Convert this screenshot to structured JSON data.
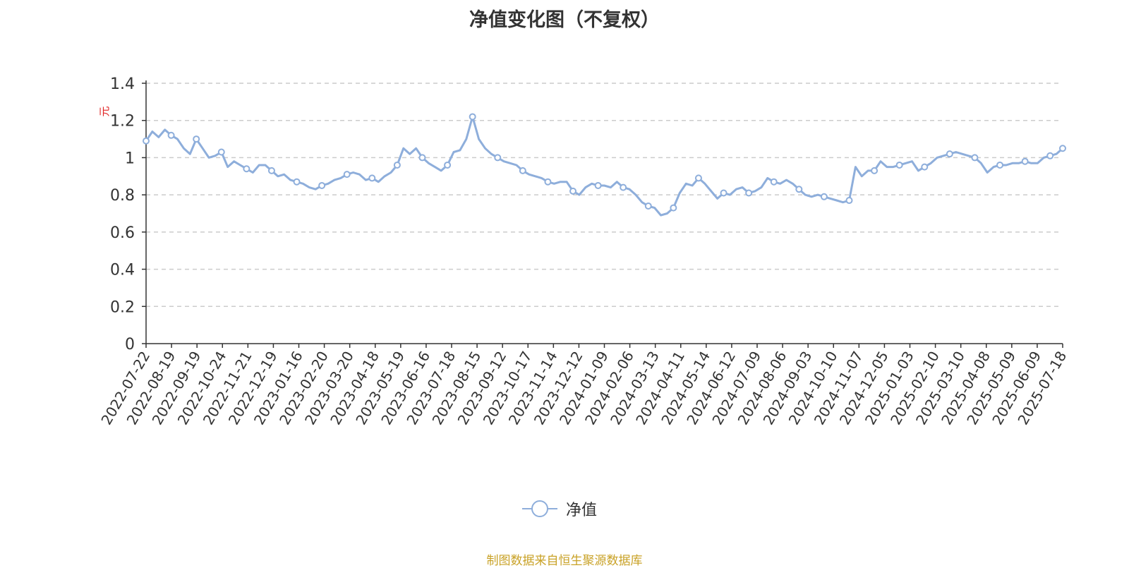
{
  "title": "净值变化图（不复权）",
  "source_note": "制图数据来自恒生聚源数据库",
  "colors": {
    "series": "#8eaedb",
    "axis": "#333333",
    "grid": "#cccccc",
    "unit": "#e02020",
    "source": "#c9a227"
  },
  "chart_data": {
    "type": "line",
    "title": "净值变化图（不复权）",
    "ylabel": "元",
    "xlabel": "",
    "ylim": [
      0,
      1.4
    ],
    "yticks": [
      "0",
      "0.2",
      "0.4",
      "0.6",
      "0.8",
      "1",
      "1.2",
      "1.4"
    ],
    "xticks": [
      "2022-07-22",
      "2022-08-19",
      "2022-09-19",
      "2022-10-24",
      "2022-11-21",
      "2022-12-19",
      "2023-01-16",
      "2023-02-20",
      "2023-03-20",
      "2023-04-18",
      "2023-05-19",
      "2023-06-16",
      "2023-07-18",
      "2023-08-15",
      "2023-09-12",
      "2023-10-17",
      "2023-11-14",
      "2023-12-12",
      "2024-01-09",
      "2024-02-06",
      "2024-03-13",
      "2024-04-11",
      "2024-05-14",
      "2024-06-12",
      "2024-07-09",
      "2024-08-06",
      "2024-09-03",
      "2024-10-10",
      "2024-11-07",
      "2024-12-05",
      "2025-01-03",
      "2025-02-10",
      "2025-03-10",
      "2025-04-08",
      "2025-05-09",
      "2025-06-09",
      "2025-07-18"
    ],
    "grid": true,
    "legend_position": "bottom",
    "series": [
      {
        "name": "净值",
        "values": [
          1.09,
          1.14,
          1.11,
          1.15,
          1.12,
          1.1,
          1.05,
          1.02,
          1.1,
          1.05,
          1.0,
          1.01,
          1.03,
          0.95,
          0.98,
          0.96,
          0.94,
          0.92,
          0.96,
          0.96,
          0.93,
          0.9,
          0.91,
          0.88,
          0.87,
          0.86,
          0.84,
          0.83,
          0.85,
          0.86,
          0.88,
          0.89,
          0.91,
          0.92,
          0.91,
          0.88,
          0.89,
          0.87,
          0.9,
          0.92,
          0.96,
          1.05,
          1.02,
          1.05,
          1.0,
          0.97,
          0.95,
          0.93,
          0.96,
          1.03,
          1.04,
          1.1,
          1.22,
          1.1,
          1.05,
          1.02,
          1.0,
          0.98,
          0.97,
          0.96,
          0.93,
          0.91,
          0.9,
          0.89,
          0.87,
          0.86,
          0.87,
          0.87,
          0.82,
          0.8,
          0.84,
          0.86,
          0.85,
          0.85,
          0.84,
          0.87,
          0.84,
          0.83,
          0.8,
          0.76,
          0.74,
          0.73,
          0.69,
          0.7,
          0.73,
          0.81,
          0.86,
          0.85,
          0.89,
          0.86,
          0.82,
          0.78,
          0.81,
          0.8,
          0.83,
          0.84,
          0.81,
          0.82,
          0.84,
          0.89,
          0.87,
          0.86,
          0.88,
          0.86,
          0.83,
          0.8,
          0.79,
          0.8,
          0.79,
          0.78,
          0.77,
          0.76,
          0.77,
          0.95,
          0.9,
          0.93,
          0.93,
          0.98,
          0.95,
          0.95,
          0.96,
          0.97,
          0.98,
          0.93,
          0.95,
          0.97,
          1.0,
          1.01,
          1.02,
          1.03,
          1.02,
          1.01,
          1.0,
          0.97,
          0.92,
          0.95,
          0.96,
          0.96,
          0.97,
          0.97,
          0.98,
          0.97,
          0.97,
          1.0,
          1.01,
          1.02,
          1.05
        ]
      }
    ]
  }
}
